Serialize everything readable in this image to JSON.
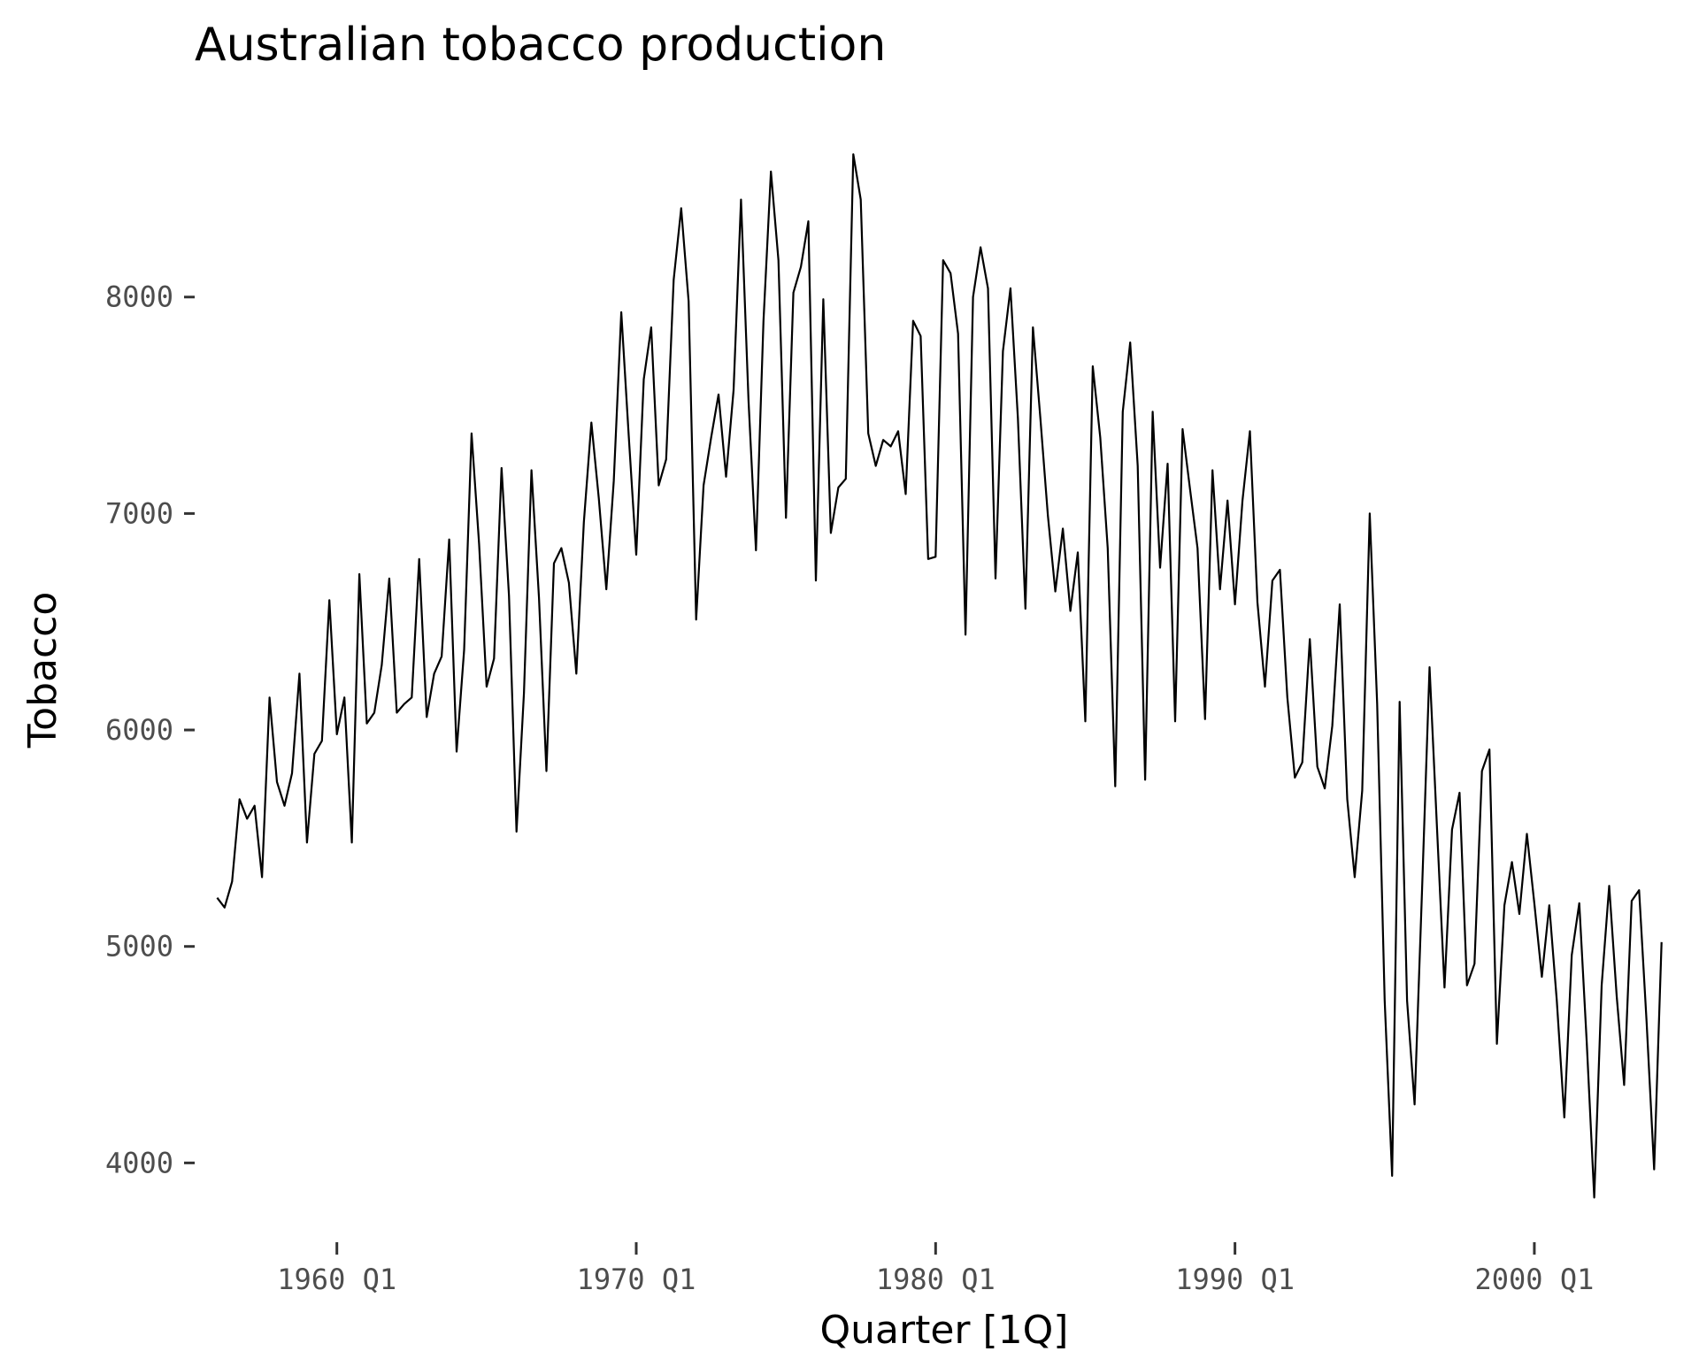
{
  "chart_data": {
    "type": "line",
    "title": "Australian tobacco production",
    "xlabel": "Quarter [1Q]",
    "ylabel": "Tobacco",
    "x_start": "1956 Q1",
    "frequency": "quarterly",
    "xlim": [
      "1955 Q2",
      "2005 Q3"
    ],
    "ylim": [
      3650,
      8800
    ],
    "x_ticks": [
      {
        "label": "1960 Q1",
        "quarter": "1960 Q1"
      },
      {
        "label": "1970 Q1",
        "quarter": "1970 Q1"
      },
      {
        "label": "1980 Q1",
        "quarter": "1980 Q1"
      },
      {
        "label": "1990 Q1",
        "quarter": "1990 Q1"
      },
      {
        "label": "2000 Q1",
        "quarter": "2000 Q1"
      }
    ],
    "y_ticks": [
      {
        "label": "4000",
        "value": 4000
      },
      {
        "label": "5000",
        "value": 5000
      },
      {
        "label": "6000",
        "value": 6000
      },
      {
        "label": "7000",
        "value": 7000
      },
      {
        "label": "8000",
        "value": 8000
      }
    ],
    "grid": false,
    "legend": "none",
    "colors": {
      "line": "#000000",
      "tick_label": "#4d4d4d",
      "tick": "#333333",
      "background": "#ffffff"
    },
    "series": [
      {
        "values": [
          5225,
          5180,
          5300,
          5680,
          5590,
          5650,
          5320,
          6150,
          5760,
          5650,
          5800,
          6260,
          5480,
          5890,
          5950,
          6600,
          5980,
          6150,
          5480,
          6720,
          6030,
          6080,
          6300,
          6700,
          6080,
          6120,
          6150,
          6790,
          6060,
          6260,
          6340,
          6880,
          5900,
          6370,
          7370,
          6860,
          6200,
          6330,
          7210,
          6620,
          5530,
          6170,
          7200,
          6610,
          5810,
          6770,
          6840,
          6680,
          6260,
          6960,
          7420,
          7070,
          6650,
          7150,
          7930,
          7360,
          6810,
          7620,
          7860,
          7130,
          7250,
          8080,
          8410,
          7980,
          6510,
          7130,
          7350,
          7550,
          7170,
          7570,
          8450,
          7520,
          6830,
          7890,
          8580,
          8170,
          6980,
          8020,
          8140,
          8350,
          6690,
          7990,
          6910,
          7120,
          7160,
          8660,
          8450,
          7370,
          7220,
          7340,
          7310,
          7380,
          7090,
          7890,
          7820,
          6790,
          6800,
          8170,
          8110,
          7830,
          6440,
          8000,
          8230,
          8040,
          6700,
          7750,
          8040,
          7440,
          6560,
          7860,
          7440,
          6990,
          6640,
          6930,
          6550,
          6820,
          6040,
          7680,
          7350,
          6840,
          5740,
          7470,
          7790,
          7220,
          5770,
          7470,
          6750,
          7230,
          6040,
          7390,
          7110,
          6840,
          6050,
          7200,
          6650,
          7060,
          6580,
          7060,
          7380,
          6590,
          6200,
          6690,
          6740,
          6150,
          5780,
          5850,
          6420,
          5830,
          5730,
          6020,
          6580,
          5680,
          5320,
          5720,
          7000,
          6120,
          4750,
          3940,
          6130,
          4750,
          4270,
          5270,
          6290,
          5540,
          4810,
          5540,
          5710,
          4820,
          4920,
          5810,
          5910,
          4550,
          5190,
          5390,
          5150,
          5520,
          5200,
          4860,
          5190,
          4750,
          4210,
          4960,
          5200,
          4560,
          3840,
          4820,
          5280,
          4770,
          4360,
          5210,
          5260,
          4650,
          3970,
          5020
        ]
      }
    ]
  }
}
